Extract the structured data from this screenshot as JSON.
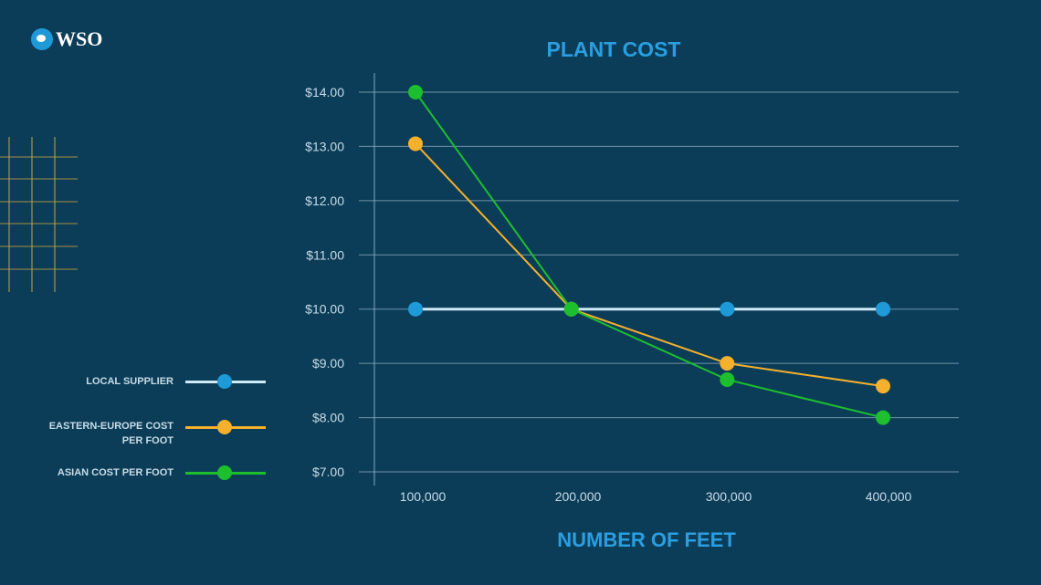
{
  "logo": {
    "text": "WSO"
  },
  "chart_data": {
    "type": "line",
    "title": "PLANT COST",
    "xlabel": "NUMBER OF FEET",
    "ylabel": "",
    "x": [
      100000,
      200000,
      300000,
      400000
    ],
    "x_tick_labels": [
      "100,000",
      "200,000",
      "300,000",
      "400,000"
    ],
    "y_tick_labels": [
      "$7.00",
      "$8.00",
      "$9.00",
      "$10.00",
      "$11.00",
      "$12.00",
      "$13.00",
      "$14.00"
    ],
    "ylim": [
      7,
      14
    ],
    "grid": true,
    "legend_position": "left",
    "series": [
      {
        "name": "LOCAL SUPPLIER",
        "values": [
          10,
          10,
          10,
          10
        ],
        "line_color": "#cde8f7",
        "marker_color": "#1e9ad8"
      },
      {
        "name": "EASTERN-EUROPE COST PER FOOT",
        "values": [
          13.05,
          10,
          9.0,
          8.58
        ],
        "line_color": "#f5b02e",
        "marker_color": "#f5b02e"
      },
      {
        "name": "ASIAN COST PER FOOT",
        "values": [
          14,
          10,
          8.7,
          8.0
        ],
        "line_color": "#1dbf2e",
        "marker_color": "#1dbf2e"
      }
    ]
  },
  "colors": {
    "background": "#0b3d58",
    "title": "#2a9ee0",
    "grid": "#8aa9bb",
    "decor_grid": "#c9a43a"
  }
}
